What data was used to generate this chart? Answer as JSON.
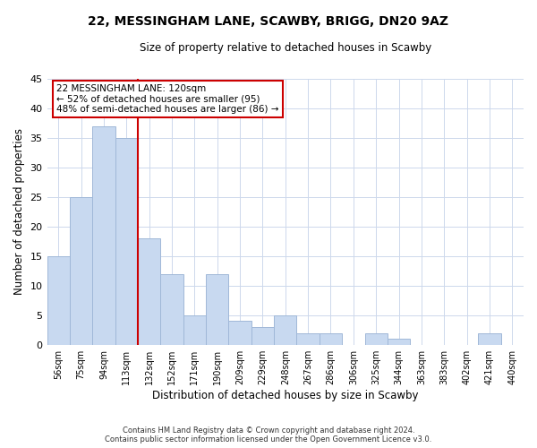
{
  "title": "22, MESSINGHAM LANE, SCAWBY, BRIGG, DN20 9AZ",
  "subtitle": "Size of property relative to detached houses in Scawby",
  "xlabel": "Distribution of detached houses by size in Scawby",
  "ylabel": "Number of detached properties",
  "bar_labels": [
    "56sqm",
    "75sqm",
    "94sqm",
    "113sqm",
    "132sqm",
    "152sqm",
    "171sqm",
    "190sqm",
    "209sqm",
    "229sqm",
    "248sqm",
    "267sqm",
    "286sqm",
    "306sqm",
    "325sqm",
    "344sqm",
    "363sqm",
    "383sqm",
    "402sqm",
    "421sqm",
    "440sqm"
  ],
  "bar_values": [
    15,
    25,
    37,
    35,
    18,
    12,
    5,
    12,
    4,
    3,
    5,
    2,
    2,
    0,
    2,
    1,
    0,
    0,
    0,
    2,
    0
  ],
  "bar_color": "#c8d9f0",
  "bar_edge_color": "#a0b8d8",
  "reference_line_color": "#cc0000",
  "annotation_line1": "22 MESSINGHAM LANE: 120sqm",
  "annotation_line2": "← 52% of detached houses are smaller (95)",
  "annotation_line3": "48% of semi-detached houses are larger (86) →",
  "annotation_box_color": "#ffffff",
  "annotation_box_edge_color": "#cc0000",
  "ylim": [
    0,
    45
  ],
  "yticks": [
    0,
    5,
    10,
    15,
    20,
    25,
    30,
    35,
    40,
    45
  ],
  "footer_line1": "Contains HM Land Registry data © Crown copyright and database right 2024.",
  "footer_line2": "Contains public sector information licensed under the Open Government Licence v3.0.",
  "background_color": "#ffffff",
  "grid_color": "#cdd8ec"
}
